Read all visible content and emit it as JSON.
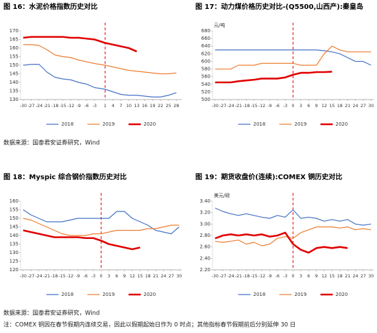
{
  "chart_data": [
    {
      "type": "line",
      "title": "图 16：水泥价格指数历史对比",
      "x": [
        -30,
        -27,
        -24,
        -21,
        -18,
        -15,
        -12,
        -9,
        -6,
        -3,
        1,
        4,
        7,
        10,
        13,
        16,
        19,
        22,
        25,
        28
      ],
      "xlim": [
        -31,
        30
      ],
      "xticks": [
        -30,
        -27,
        -24,
        -21,
        -18,
        -15,
        -12,
        -9,
        -6,
        -3,
        1,
        4,
        7,
        10,
        13,
        16,
        19,
        22,
        25,
        28
      ],
      "ylim": [
        130,
        170
      ],
      "yticks": [
        130,
        135,
        140,
        145,
        150,
        155,
        160,
        165,
        170
      ],
      "reference_x": 1,
      "series": [
        {
          "name": "2018",
          "color": "#4472c4",
          "values": [
            150,
            150.5,
            150.5,
            146,
            143,
            142,
            141.5,
            140,
            139,
            137,
            136,
            134.5,
            133,
            132.5,
            132.5,
            132,
            131.5,
            131.5,
            132.5,
            134
          ]
        },
        {
          "name": "2019",
          "color": "#ed7d31",
          "values": [
            162,
            162,
            161.5,
            159,
            156,
            155,
            154.5,
            153,
            152,
            151,
            150,
            149,
            148,
            147,
            146.5,
            146,
            145.5,
            145,
            145,
            145.5
          ]
        },
        {
          "name": "2020",
          "color": "#e00000",
          "values": [
            166,
            166.5,
            166.5,
            166.5,
            166.5,
            166.5,
            166,
            166,
            165.5,
            165,
            163,
            162,
            161,
            160,
            158,
            null,
            null,
            null,
            null,
            null
          ]
        }
      ]
    },
    {
      "type": "line",
      "title": "图 17：动力煤价格历史对比-(Q5500,山西产):秦皇岛",
      "y_label": "元/吨",
      "x": [
        -30,
        -27,
        -24,
        -21,
        -18,
        -15,
        -12,
        -9,
        -6,
        -3,
        0,
        3,
        6,
        9,
        12,
        15,
        18,
        21,
        24,
        27,
        30
      ],
      "xlim": [
        -31,
        31
      ],
      "xticks": [
        -30,
        -27,
        -24,
        -21,
        -18,
        -15,
        -12,
        -9,
        -6,
        -3,
        0,
        3,
        6,
        9,
        12,
        15,
        18,
        21,
        24,
        27,
        30
      ],
      "ylim": [
        500,
        680
      ],
      "yticks": [
        500,
        520,
        540,
        560,
        580,
        600,
        620,
        640,
        660,
        680
      ],
      "reference_x": 0,
      "series": [
        {
          "name": "2018",
          "color": "#4472c4",
          "values": [
            630,
            630,
            630,
            630,
            630,
            630,
            630,
            630,
            630,
            630,
            630,
            630,
            630,
            630,
            628,
            625,
            620,
            610,
            600,
            600,
            590
          ]
        },
        {
          "name": "2019",
          "color": "#ed7d31",
          "values": [
            580,
            580,
            580,
            590,
            590,
            590,
            595,
            595,
            595,
            595,
            595,
            590,
            590,
            590,
            620,
            640,
            630,
            625,
            625,
            625,
            625
          ]
        },
        {
          "name": "2020",
          "color": "#e00000",
          "values": [
            545,
            545,
            545,
            548,
            550,
            552,
            555,
            555,
            555,
            558,
            565,
            570,
            570,
            572,
            572,
            573,
            null,
            null,
            null,
            null,
            null
          ]
        }
      ]
    },
    {
      "type": "line",
      "title": "图 18：Myspic 综合钢价指数历史对比",
      "x": [
        -30,
        -27,
        -24,
        -21,
        -18,
        -15,
        -12,
        -9,
        -6,
        -3,
        0,
        3,
        6,
        9,
        12,
        15,
        18,
        21,
        24,
        27,
        30
      ],
      "xlim": [
        -31,
        31
      ],
      "xticks": [
        -30,
        -27,
        -24,
        -21,
        -18,
        -15,
        -12,
        -9,
        -6,
        -3,
        0,
        3,
        6,
        9,
        12,
        15,
        18,
        21,
        24,
        27,
        30
      ],
      "ylim": [
        120,
        160
      ],
      "yticks": [
        120,
        125,
        130,
        135,
        140,
        145,
        150,
        155,
        160
      ],
      "reference_x": 0,
      "series": [
        {
          "name": "2018",
          "color": "#4472c4",
          "values": [
            155,
            152,
            150,
            148,
            148,
            148,
            149,
            150,
            150,
            150,
            150,
            150,
            154,
            154,
            150,
            148,
            146,
            143,
            142,
            141,
            145
          ]
        },
        {
          "name": "2019",
          "color": "#ed7d31",
          "values": [
            150,
            149,
            147,
            145,
            143,
            141,
            140,
            140,
            140,
            141,
            141,
            142,
            143,
            143,
            143,
            143,
            144,
            144,
            145,
            146,
            146
          ]
        },
        {
          "name": "2020",
          "color": "#e00000",
          "values": [
            143,
            142,
            141,
            140,
            139,
            139,
            139,
            139,
            138.5,
            138.5,
            137,
            135,
            134,
            133,
            132,
            133,
            null,
            null,
            null,
            null,
            null
          ]
        }
      ]
    },
    {
      "type": "line",
      "title": "图 19：期货收盘价(连续):COMEX 铜历史对比",
      "y_label": "美元/磅",
      "x": [
        -30,
        -27,
        -24,
        -21,
        -18,
        -15,
        -12,
        -9,
        -6,
        -3,
        0,
        3,
        6,
        9,
        12,
        15,
        18,
        21,
        24,
        27,
        30
      ],
      "xlim": [
        -31,
        31
      ],
      "xticks": [
        -30,
        -27,
        -24,
        -21,
        -18,
        -15,
        -12,
        -9,
        -6,
        -3,
        0,
        3,
        6,
        9,
        12,
        15,
        18,
        21,
        24,
        27,
        30
      ],
      "ylim": [
        2.2,
        3.4
      ],
      "yticks": [
        {
          "value": 2.2,
          "label": "2.20"
        },
        {
          "value": 2.4,
          "label": "2.40"
        },
        {
          "value": 2.6,
          "label": "2.60"
        },
        {
          "value": 2.8,
          "label": "2.80"
        },
        {
          "value": 3.0,
          "label": "3.00"
        },
        {
          "value": 3.2,
          "label": "3.20"
        },
        {
          "value": 3.4,
          "label": "3.40"
        }
      ],
      "reference_x": 0,
      "series": [
        {
          "name": "2018",
          "color": "#4472c4",
          "values": [
            3.28,
            3.22,
            3.18,
            3.15,
            3.18,
            3.15,
            3.12,
            3.1,
            3.15,
            3.12,
            3.25,
            3.1,
            3.12,
            3.1,
            3.05,
            3.08,
            3.05,
            3.08,
            3.0,
            2.98,
            3.0
          ]
        },
        {
          "name": "2019",
          "color": "#ed7d31",
          "values": [
            2.7,
            2.68,
            2.7,
            2.72,
            2.65,
            2.68,
            2.62,
            2.65,
            2.75,
            2.78,
            2.75,
            2.85,
            2.9,
            2.95,
            2.95,
            2.95,
            2.93,
            2.95,
            2.9,
            2.92,
            2.9
          ]
        },
        {
          "name": "2020",
          "color": "#e00000",
          "values": [
            2.75,
            2.8,
            2.82,
            2.8,
            2.82,
            2.8,
            2.82,
            2.78,
            2.8,
            2.85,
            2.65,
            2.55,
            2.5,
            2.58,
            2.6,
            2.58,
            2.6,
            2.58,
            null,
            null,
            null
          ]
        }
      ]
    }
  ],
  "sources": [
    "数据来源：国泰君安证券研究，Wind",
    "数据来源：国泰君安证券研究，Wind"
  ],
  "note": "注：COMEX 铜因在春节假期内连续交易，因此以假期起始日作为 0 时点；其他指标春节假期前后分别延伸 30 日"
}
